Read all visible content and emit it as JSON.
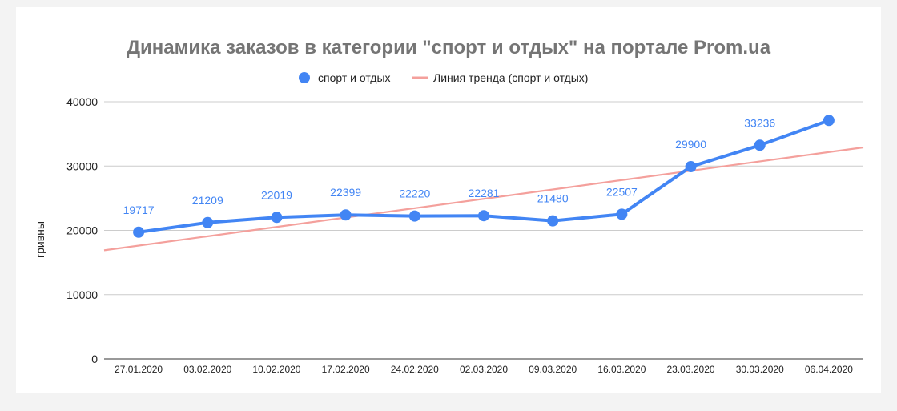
{
  "chart_data": {
    "type": "line",
    "title": "Динамика заказов в категории \"спорт и отдых\" на портале Prom.ua",
    "ylabel": "гривны",
    "xlabel": "",
    "ylim": [
      0,
      40000
    ],
    "yticks": [
      0,
      10000,
      20000,
      30000,
      40000
    ],
    "grid": true,
    "legend_position": "top",
    "categories": [
      "27.01.2020",
      "03.02.2020",
      "10.02.2020",
      "17.02.2020",
      "24.02.2020",
      "02.03.2020",
      "09.03.2020",
      "16.03.2020",
      "23.03.2020",
      "30.03.2020",
      "06.04.2020"
    ],
    "series": [
      {
        "name": "спорт и отдых",
        "color": "#4285f4",
        "values": [
          19717,
          21209,
          22019,
          22399,
          22220,
          22281,
          21480,
          22507,
          29900,
          33236,
          37100
        ],
        "data_labels": [
          "19717",
          "21209",
          "22019",
          "22399",
          "22220",
          "22281",
          "21480",
          "22507",
          "29900",
          "33236",
          ""
        ]
      }
    ],
    "trendline": {
      "name": "Линия тренда (спорт и отдых)",
      "color": "#f4a09c",
      "start_value": 16900,
      "end_value": 32900
    }
  }
}
